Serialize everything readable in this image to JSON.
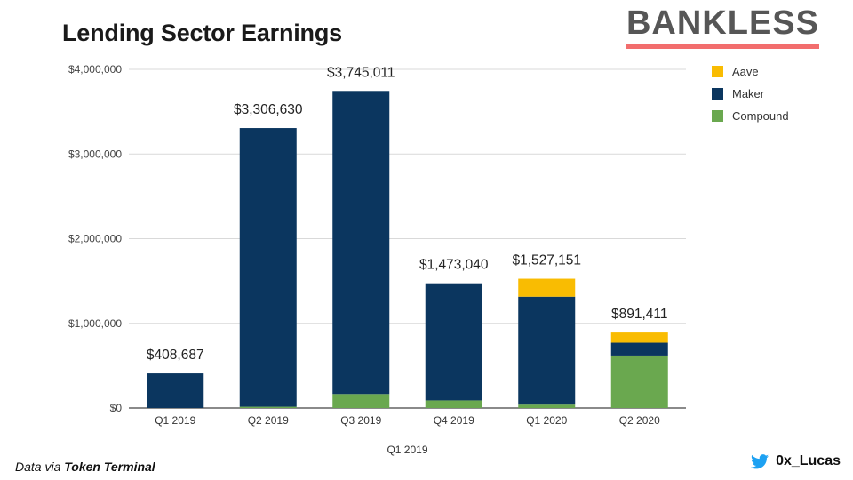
{
  "header": {
    "title": "Lending Sector Earnings",
    "brand": "BANKLESS"
  },
  "footer": {
    "credit_prefix": "Data via ",
    "credit_source": "Token Terminal",
    "twitter_handle": "0x_Lucas"
  },
  "colors": {
    "aave": "#f9bc02",
    "maker": "#0b365f",
    "compound": "#6aa84f",
    "brand_bar": "#f26d6d",
    "twitter": "#1da1f2"
  },
  "chart_data": {
    "type": "bar",
    "stacked": true,
    "title": "Lending Sector Earnings",
    "xlabel": "Q1 2019",
    "ylabel": "",
    "ylim": [
      0,
      4000000
    ],
    "yticks": [
      {
        "value": 0,
        "label": "$0"
      },
      {
        "value": 1000000,
        "label": "$1,000,000"
      },
      {
        "value": 2000000,
        "label": "$2,000,000"
      },
      {
        "value": 3000000,
        "label": "$3,000,000"
      },
      {
        "value": 4000000,
        "label": "$4,000,000"
      }
    ],
    "categories": [
      "Q1 2019",
      "Q2 2019",
      "Q3 2019",
      "Q4 2019",
      "Q1 2020",
      "Q2 2020"
    ],
    "series": [
      {
        "name": "Compound",
        "color": "#6aa84f",
        "values": [
          0,
          15000,
          165000,
          90000,
          40000,
          620000
        ]
      },
      {
        "name": "Maker",
        "color": "#0b365f",
        "values": [
          408687,
          3291630,
          3580011,
          1383040,
          1275000,
          151411
        ]
      },
      {
        "name": "Aave",
        "color": "#f9bc02",
        "values": [
          0,
          0,
          0,
          0,
          212151,
          120000
        ]
      }
    ],
    "totals": [
      408687,
      3306630,
      3745011,
      1473040,
      1527151,
      891411
    ],
    "total_labels": [
      "$408,687",
      "$3,306,630",
      "$3,745,011",
      "$1,473,040",
      "$1,527,151",
      "$891,411"
    ],
    "legend": [
      "Aave",
      "Maker",
      "Compound"
    ],
    "legend_position": "right",
    "grid": true
  }
}
